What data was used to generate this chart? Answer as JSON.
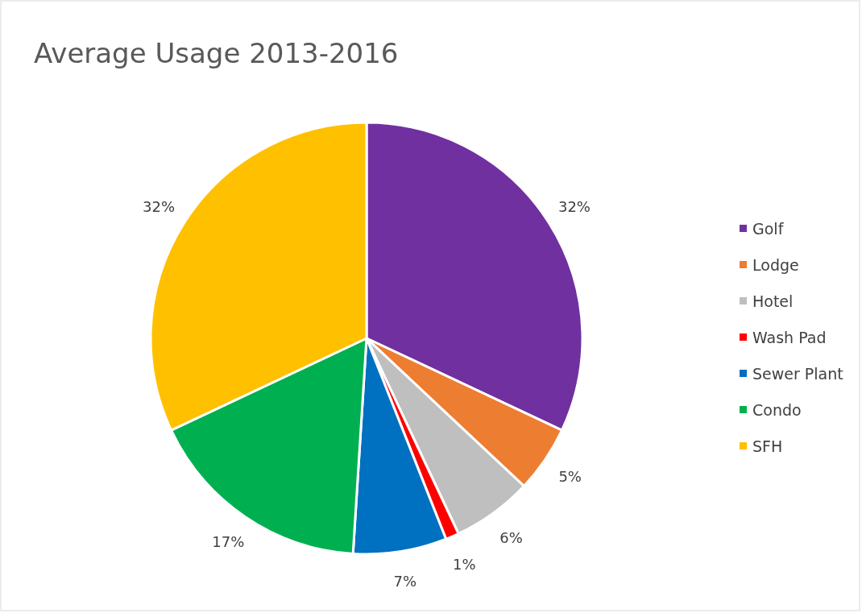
{
  "chart_data": {
    "type": "pie",
    "title": "Average Usage 2013-2016",
    "categories": [
      "Golf",
      "Lodge",
      "Hotel",
      "Wash Pad",
      "Sewer Plant",
      "Condo",
      "SFH"
    ],
    "values": [
      32,
      5,
      6,
      1,
      7,
      17,
      32
    ],
    "value_labels": [
      "32%",
      "5%",
      "6%",
      "1%",
      "7%",
      "17%",
      "32%"
    ],
    "colors": [
      "#7030a0",
      "#ed7d31",
      "#bfbfbf",
      "#ff0000",
      "#0070c0",
      "#00b050",
      "#ffc000"
    ],
    "legend": "right"
  }
}
